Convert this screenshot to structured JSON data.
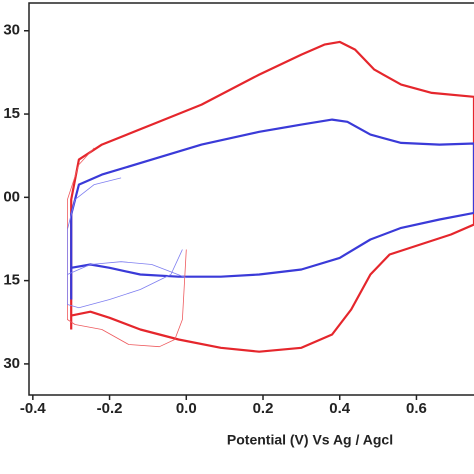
{
  "chart_data": {
    "type": "line",
    "x_label": "Potential (V) Vs Ag / Agcl",
    "xlim": [
      -0.41,
      0.75
    ],
    "ylim": [
      -35.6,
      35
    ],
    "xticks": [
      -0.4,
      -0.2,
      {
        "value": 0,
        "label": "0.0"
      },
      0.2,
      0.4,
      0.6
    ],
    "yticks": [
      30,
      15,
      {
        "value": 0,
        "label": "00"
      },
      {
        "value": -15,
        "label": "15"
      },
      {
        "value": -30,
        "label": "30"
      }
    ],
    "series": [
      {
        "color": "#e5262c",
        "line_width": 2.2,
        "x": [
          -0.3,
          -0.3,
          -0.28,
          -0.22,
          -0.09,
          0.04,
          0.19,
          0.3,
          0.36,
          0.4,
          0.44,
          0.49,
          0.56,
          0.64,
          0.75,
          0.75,
          0.69,
          0.61,
          0.53,
          0.48,
          0.43,
          0.38,
          0.3,
          0.19,
          0.09,
          -0.02,
          -0.12,
          -0.2,
          -0.25,
          -0.3
        ],
        "values": [
          -23.8,
          -0.4,
          6.8,
          9.5,
          13.1,
          16.7,
          22.1,
          25.7,
          27.5,
          28.0,
          26.6,
          23.0,
          20.3,
          18.8,
          18.1,
          -4.9,
          -6.7,
          -8.5,
          -10.3,
          -13.9,
          -20.2,
          -24.7,
          -27.1,
          -27.8,
          -27.1,
          -25.6,
          -23.8,
          -21.7,
          -20.6,
          -21.3
        ]
      },
      {
        "color": "#3a3ad8",
        "line_width": 2.2,
        "x": [
          -0.3,
          -0.3,
          -0.28,
          -0.22,
          -0.09,
          0.04,
          0.19,
          0.3,
          0.38,
          0.42,
          0.48,
          0.56,
          0.66,
          0.75,
          0.75,
          0.66,
          0.56,
          0.48,
          0.4,
          0.3,
          0.19,
          0.09,
          -0.02,
          -0.12,
          -0.2,
          -0.25,
          -0.3
        ],
        "values": [
          -18.4,
          -3.1,
          2.3,
          4.1,
          6.8,
          9.5,
          11.8,
          13.1,
          14.0,
          13.6,
          11.3,
          9.8,
          9.5,
          9.7,
          -2.8,
          -4.0,
          -5.5,
          -7.6,
          -10.9,
          -13.0,
          -13.9,
          -14.3,
          -14.3,
          -13.9,
          -12.7,
          -12.1,
          -12.7
        ]
      },
      {
        "color": "#ee5a5e",
        "line_width": 0.8,
        "x": [
          0.0,
          -0.01,
          -0.03,
          -0.07,
          -0.15,
          -0.22,
          -0.29,
          -0.31,
          -0.31,
          -0.28,
          -0.24
        ],
        "values": [
          -9.4,
          -22.0,
          -25.6,
          -26.9,
          -26.5,
          -23.8,
          -22.9,
          -22.0,
          -0.4,
          5.9,
          8.9
        ]
      },
      {
        "color": "#7e7ef0",
        "line_width": 0.8,
        "x": [
          -0.01,
          -0.04,
          -0.12,
          -0.2,
          -0.28,
          -0.31,
          -0.31,
          -0.29,
          -0.24,
          -0.17
        ],
        "values": [
          -9.4,
          -13.9,
          -16.6,
          -18.4,
          -19.9,
          -19.3,
          -5.8,
          -0.4,
          2.3,
          3.5
        ]
      },
      {
        "color": "#7e7ef0",
        "line_width": 0.8,
        "x": [
          -0.31,
          -0.25,
          -0.17,
          -0.09,
          0.0
        ],
        "values": [
          -13.9,
          -12.1,
          -11.6,
          -12.1,
          -14.5
        ]
      }
    ]
  }
}
